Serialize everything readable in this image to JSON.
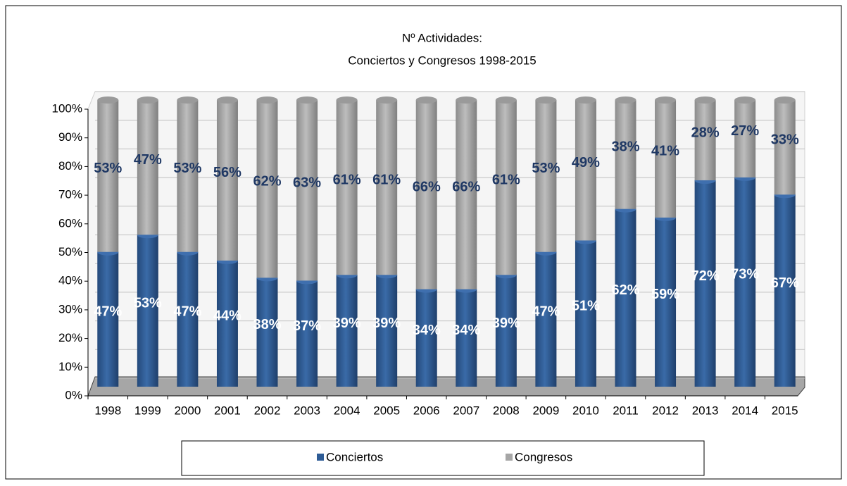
{
  "chart_data": {
    "type": "stacked_bar",
    "title": [
      "Nº Actividades:",
      "Conciertos y Congresos 1998-2015"
    ],
    "categories": [
      "1998",
      "1999",
      "2000",
      "2001",
      "2002",
      "2003",
      "2004",
      "2005",
      "2006",
      "2007",
      "2008",
      "2009",
      "2010",
      "2011",
      "2012",
      "2013",
      "2014",
      "2015"
    ],
    "series": [
      {
        "name": "Conciertos",
        "color": "#2e5c96",
        "values": [
          47,
          53,
          47,
          44,
          38,
          37,
          39,
          39,
          34,
          34,
          39,
          47,
          51,
          62,
          59,
          72,
          73,
          67
        ],
        "value_labels": [
          "47%",
          "53%",
          "47%",
          "44%",
          "38%",
          "37%",
          "39%",
          "39%",
          "34%",
          "34%",
          "39%",
          "47%",
          "51%",
          "62%",
          "59%",
          "72%",
          "73%",
          "67%"
        ]
      },
      {
        "name": "Congresos",
        "color": "#a6a6a6",
        "values": [
          53,
          47,
          53,
          56,
          62,
          63,
          61,
          61,
          66,
          66,
          61,
          53,
          49,
          38,
          41,
          28,
          27,
          33
        ],
        "value_labels": [
          "53%",
          "47%",
          "53%",
          "56%",
          "62%",
          "63%",
          "61%",
          "61%",
          "66%",
          "66%",
          "61%",
          "53%",
          "49%",
          "38%",
          "41%",
          "28%",
          "27%",
          "33%"
        ]
      }
    ],
    "ylim": [
      0,
      100
    ],
    "yticks": [
      {
        "value": 0,
        "label": "0%"
      },
      {
        "value": 10,
        "label": "10%"
      },
      {
        "value": 20,
        "label": "20%"
      },
      {
        "value": 30,
        "label": "30%"
      },
      {
        "value": 40,
        "label": "40%"
      },
      {
        "value": 50,
        "label": "50%"
      },
      {
        "value": 60,
        "label": "60%"
      },
      {
        "value": 70,
        "label": "70%"
      },
      {
        "value": 80,
        "label": "80%"
      },
      {
        "value": 90,
        "label": "90%"
      },
      {
        "value": 100,
        "label": "100%"
      }
    ],
    "grid": true,
    "legend": "bottom"
  }
}
